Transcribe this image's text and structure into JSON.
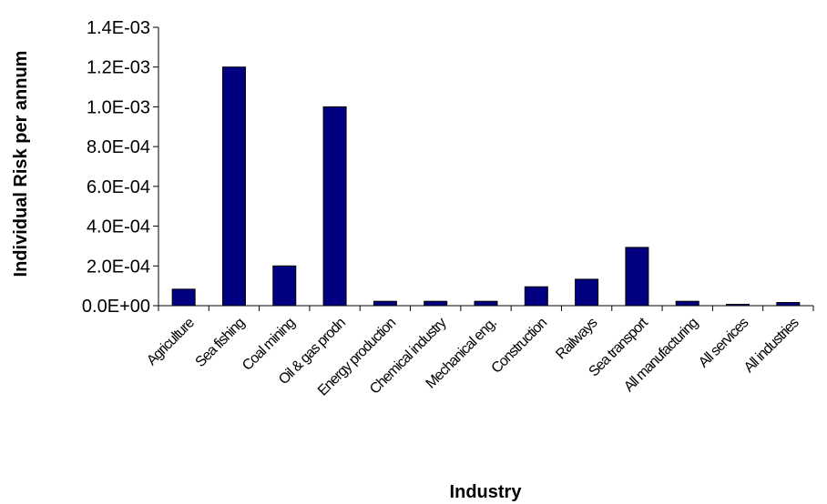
{
  "chart_data": {
    "type": "bar",
    "title": "",
    "xlabel": "Industry",
    "ylabel": "Individual Risk per annum",
    "categories": [
      "Agriculture",
      "Sea fishing",
      "Coal mining",
      "Oil & gas prodn",
      "Energy production",
      "Chemical industry",
      "Mechanical eng.",
      "Construction",
      "Railways",
      "Sea transport",
      "All manufacturing",
      "All services",
      "All industries"
    ],
    "values": [
      8.3e-05,
      0.0012,
      0.0002,
      0.001,
      2.2e-05,
      2.2e-05,
      2.2e-05,
      9.5e-05,
      0.000133,
      0.000293,
      2.2e-05,
      7e-06,
      1.6e-05
    ],
    "ylim": [
      0,
      0.0014
    ],
    "yticks": [
      0,
      0.0002,
      0.0004,
      0.0006,
      0.0008,
      0.001,
      0.0012,
      0.0014
    ],
    "ytick_labels": [
      "0.0E+00",
      "2.0E-04",
      "4.0E-04",
      "6.0E-04",
      "8.0E-04",
      "1.0E-03",
      "1.2E-03",
      "1.4E-03"
    ],
    "bar_color": "#000080",
    "grid": false,
    "legend": "none"
  }
}
